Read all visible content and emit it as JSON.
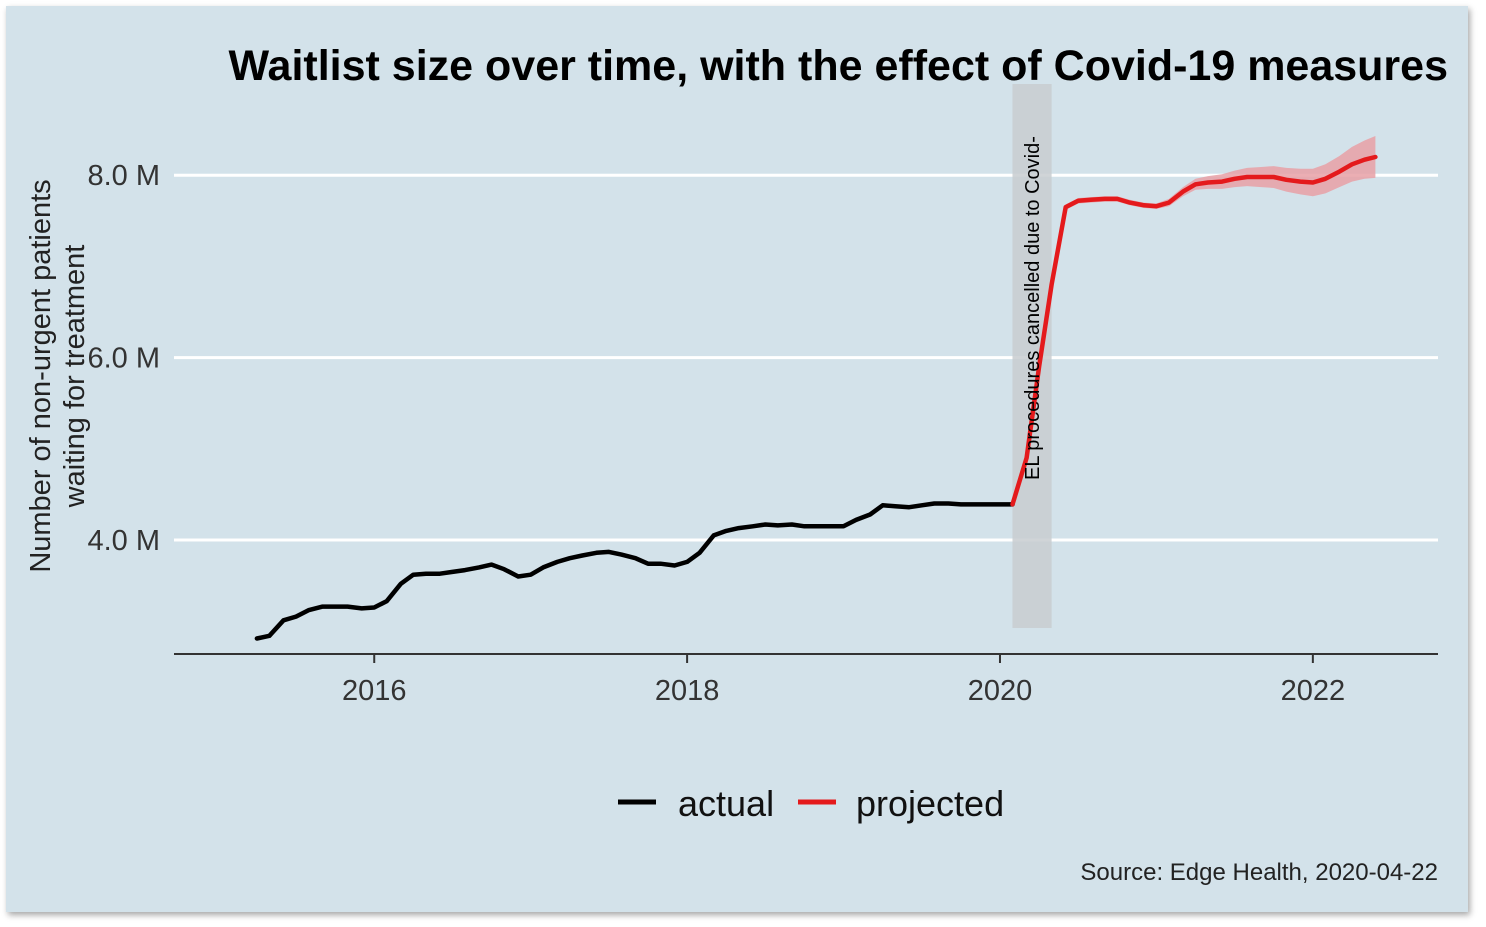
{
  "chart_data": {
    "type": "line",
    "title": "Waitlist size over time, with the effect of Covid-19 measures",
    "xlabel": "",
    "ylabel_lines": [
      "Number of non-urgent patients",
      "waiting for treatment"
    ],
    "xlim": [
      2014.72,
      2022.8
    ],
    "ylim": [
      2.75,
      9.0
    ],
    "x_ticks": [
      {
        "value": 2016,
        "label": "2016"
      },
      {
        "value": 2018,
        "label": "2018"
      },
      {
        "value": 2020,
        "label": "2020"
      },
      {
        "value": 2022,
        "label": "2022"
      }
    ],
    "y_ticks": [
      {
        "value": 4.0,
        "label": "4.0 M"
      },
      {
        "value": 6.0,
        "label": "6.0 M"
      },
      {
        "value": 8.0,
        "label": "8.0 M"
      }
    ],
    "grid": "horizontal major lines",
    "legend_position": "bottom",
    "colors": {
      "background": "#d3e2ea",
      "actual": "#000000",
      "projected": "#e41a1c",
      "ribbon": "#e8a0a6",
      "shade": "#c8ccd0",
      "grid": "#ffffff"
    },
    "annotation": {
      "text": "EL procedures cancelled due to Covid-",
      "x_start": 2020.08,
      "x_end": 2020.33
    },
    "series": [
      {
        "name": "actual",
        "color": "#000000",
        "x": [
          2015.25,
          2015.33,
          2015.42,
          2015.5,
          2015.58,
          2015.67,
          2015.75,
          2015.83,
          2015.92,
          2016.0,
          2016.08,
          2016.17,
          2016.25,
          2016.33,
          2016.42,
          2016.5,
          2016.58,
          2016.67,
          2016.75,
          2016.83,
          2016.92,
          2017.0,
          2017.08,
          2017.17,
          2017.25,
          2017.33,
          2017.42,
          2017.5,
          2017.58,
          2017.67,
          2017.75,
          2017.83,
          2017.92,
          2018.0,
          2018.08,
          2018.17,
          2018.25,
          2018.33,
          2018.42,
          2018.5,
          2018.58,
          2018.67,
          2018.75,
          2018.83,
          2018.92,
          2019.0,
          2019.08,
          2019.17,
          2019.25,
          2019.33,
          2019.42,
          2019.5,
          2019.58,
          2019.67,
          2019.75,
          2019.83,
          2019.92,
          2020.0,
          2020.08
        ],
        "values": [
          2.92,
          2.95,
          3.12,
          3.16,
          3.23,
          3.27,
          3.27,
          3.27,
          3.25,
          3.26,
          3.33,
          3.52,
          3.62,
          3.63,
          3.63,
          3.65,
          3.67,
          3.7,
          3.73,
          3.68,
          3.6,
          3.62,
          3.7,
          3.76,
          3.8,
          3.83,
          3.86,
          3.87,
          3.84,
          3.8,
          3.74,
          3.74,
          3.72,
          3.76,
          3.86,
          4.05,
          4.1,
          4.13,
          4.15,
          4.17,
          4.16,
          4.17,
          4.15,
          4.15,
          4.15,
          4.15,
          4.22,
          4.28,
          4.38,
          4.37,
          4.36,
          4.38,
          4.4,
          4.4,
          4.39,
          4.39,
          4.39,
          4.39,
          4.39
        ]
      },
      {
        "name": "projected",
        "color": "#e41a1c",
        "x": [
          2020.08,
          2020.17,
          2020.25,
          2020.33,
          2020.42,
          2020.5,
          2020.58,
          2020.67,
          2020.75,
          2020.83,
          2020.92,
          2021.0,
          2021.08,
          2021.17,
          2021.25,
          2021.33,
          2021.42,
          2021.5,
          2021.58,
          2021.67,
          2021.75,
          2021.83,
          2021.92,
          2022.0,
          2022.08,
          2022.17,
          2022.25,
          2022.33,
          2022.4
        ],
        "values": [
          4.39,
          4.9,
          5.9,
          6.8,
          7.65,
          7.72,
          7.73,
          7.74,
          7.74,
          7.7,
          7.67,
          7.66,
          7.7,
          7.82,
          7.9,
          7.92,
          7.93,
          7.96,
          7.98,
          7.98,
          7.98,
          7.95,
          7.93,
          7.92,
          7.96,
          8.04,
          8.12,
          8.17,
          8.2
        ],
        "lower": [
          4.39,
          4.88,
          5.88,
          6.78,
          7.62,
          7.69,
          7.7,
          7.71,
          7.71,
          7.67,
          7.64,
          7.63,
          7.66,
          7.77,
          7.84,
          7.85,
          7.85,
          7.87,
          7.88,
          7.87,
          7.86,
          7.82,
          7.79,
          7.77,
          7.8,
          7.87,
          7.93,
          7.96,
          7.97
        ],
        "upper": [
          4.39,
          4.92,
          5.92,
          6.82,
          7.68,
          7.75,
          7.76,
          7.77,
          7.77,
          7.73,
          7.7,
          7.69,
          7.74,
          7.87,
          7.96,
          7.99,
          8.01,
          8.05,
          8.08,
          8.09,
          8.1,
          8.08,
          8.07,
          8.07,
          8.12,
          8.21,
          8.31,
          8.38,
          8.43
        ]
      }
    ],
    "legend": [
      {
        "label": "actual",
        "color": "#000000"
      },
      {
        "label": "projected",
        "color": "#e41a1c"
      }
    ],
    "caption": "Source: Edge Health, 2020-04-22"
  }
}
